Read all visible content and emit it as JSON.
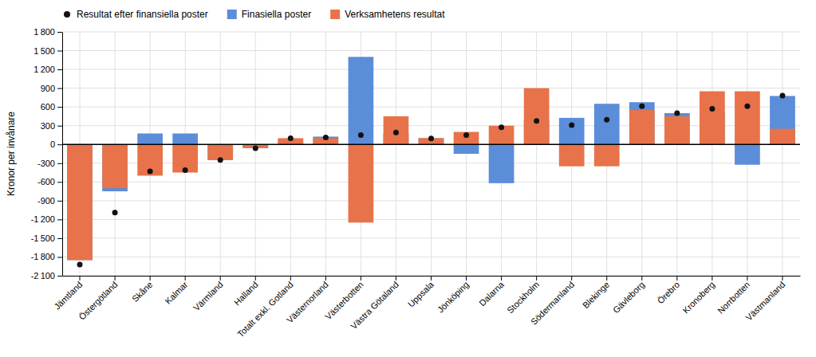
{
  "chart_data": {
    "type": "bar",
    "ylabel": "Kronor per invånare",
    "categories": [
      "Jämtland",
      "Östergötland",
      "Skåne",
      "Kalmar",
      "Värmland",
      "Halland",
      "Totalt exkl. Gotland",
      "Västernorland",
      "Västerbotten",
      "Västra Götaland",
      "Uppsala",
      "Jönköping",
      "Dalarna",
      "Stockholm",
      "Södermanland",
      "Blekinge",
      "Gävleborg",
      "Örebro",
      "Kronoberg",
      "Norrbotten",
      "Västmanland"
    ],
    "series": [
      {
        "name": "Resultat efter finansiella poster",
        "type": "scatter",
        "marker": "circle",
        "color": "#111111",
        "values": [
          -1920,
          -1090,
          -430,
          -410,
          -250,
          -60,
          100,
          110,
          150,
          190,
          95,
          150,
          275,
          375,
          310,
          395,
          610,
          500,
          570,
          610,
          780
        ]
      },
      {
        "name": "Finasiella poster",
        "type": "bar",
        "color": "#5B8DD9",
        "values": [
          -1850,
          -750,
          175,
          175,
          -250,
          -60,
          75,
          125,
          1400,
          175,
          100,
          -150,
          -620,
          400,
          425,
          650,
          675,
          500,
          525,
          -325,
          775
        ]
      },
      {
        "name": "Verksamhetens resultat",
        "type": "bar",
        "color": "#E8734A",
        "values": [
          -1850,
          -700,
          -500,
          -450,
          -250,
          -60,
          100,
          100,
          -1250,
          450,
          100,
          200,
          300,
          900,
          -350,
          -350,
          550,
          450,
          850,
          850,
          250
        ]
      }
    ],
    "ylim": [
      -2100,
      1800
    ],
    "yticks": [
      {
        "value": -2100,
        "label": "-2 100"
      },
      {
        "value": -1800,
        "label": "-1 800"
      },
      {
        "value": -1500,
        "label": "-1 500"
      },
      {
        "value": -1200,
        "label": "-1 200"
      },
      -900,
      -600,
      -300,
      0,
      300,
      600,
      900,
      {
        "value": 1200,
        "label": "1 200"
      },
      {
        "value": 1500,
        "label": "1 500"
      },
      {
        "value": 1800,
        "label": "1 800"
      }
    ],
    "grid": true,
    "legend": "upper left"
  }
}
